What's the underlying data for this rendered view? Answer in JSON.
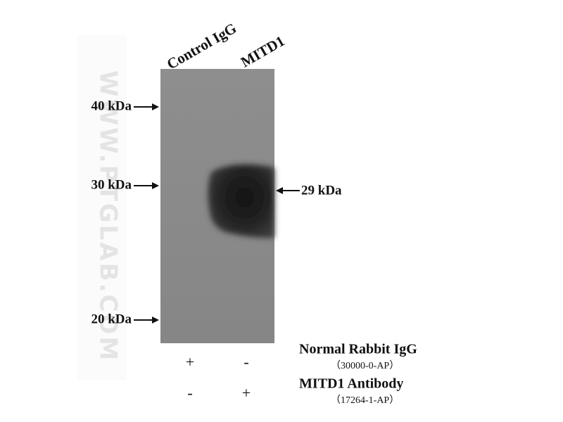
{
  "lanes": [
    "Control IgG",
    "MITD1"
  ],
  "markers": [
    "40 kDa",
    "30 kDa",
    "20 kDa"
  ],
  "band_label": "29 kDa",
  "treatments": [
    {
      "name": "Normal Rabbit IgG",
      "catalog": "（30000-0-AP）",
      "signs": [
        "+",
        "-"
      ]
    },
    {
      "name": "MITD1 Antibody",
      "catalog": "（17264-1-AP）",
      "signs": [
        "-",
        "+"
      ]
    }
  ],
  "watermark": "WWW.PTGLAB.COM"
}
